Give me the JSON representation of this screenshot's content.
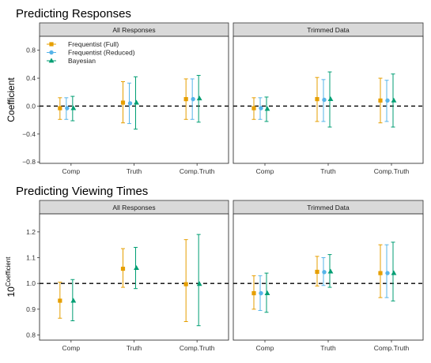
{
  "colors": {
    "Frequentist (Full)": "#E69F00",
    "Frequentist (Reduced)": "#56B4E9",
    "Bayesian": "#009E73"
  },
  "chart_data": [
    {
      "type": "errorbar",
      "title": "Predicting Responses",
      "ylabel": "Coefficient",
      "ylabel_sup": "",
      "categories": [
        "Comp",
        "Truth",
        "Comp.Truth"
      ],
      "yticks": [
        -0.8,
        -0.4,
        0.0,
        0.4,
        0.8
      ],
      "ytick_labels": [
        "−0.8",
        "−0.4",
        "0.0",
        "0.4",
        "0.8"
      ],
      "ylim": [
        -0.82,
        1.0
      ],
      "reference_line": 0,
      "legend": {
        "placement": "top-left",
        "entries": [
          "Frequentist (Full)",
          "Frequentist (Reduced)",
          "Bayesian"
        ]
      },
      "panels": [
        {
          "label": "All Responses",
          "series": [
            {
              "name": "Frequentist (Full)",
              "shape": "square",
              "estimate": [
                -0.03,
                0.05,
                0.1
              ],
              "lower": [
                -0.19,
                -0.24,
                -0.19
              ],
              "upper": [
                0.12,
                0.35,
                0.39
              ]
            },
            {
              "name": "Frequentist (Reduced)",
              "shape": "circle",
              "estimate": [
                -0.03,
                0.04,
                0.1
              ],
              "lower": [
                -0.19,
                -0.25,
                -0.19
              ],
              "upper": [
                0.12,
                0.33,
                0.39
              ]
            },
            {
              "name": "Bayesian",
              "shape": "triangle",
              "estimate": [
                -0.03,
                0.05,
                0.11
              ],
              "lower": [
                -0.21,
                -0.33,
                -0.23
              ],
              "upper": [
                0.14,
                0.42,
                0.44
              ]
            }
          ]
        },
        {
          "label": "Trimmed Data",
          "series": [
            {
              "name": "Frequentist (Full)",
              "shape": "square",
              "estimate": [
                -0.03,
                0.1,
                0.08
              ],
              "lower": [
                -0.19,
                -0.22,
                -0.24
              ],
              "upper": [
                0.12,
                0.41,
                0.4
              ]
            },
            {
              "name": "Frequentist (Reduced)",
              "shape": "circle",
              "estimate": [
                -0.03,
                0.09,
                0.08
              ],
              "lower": [
                -0.19,
                -0.22,
                -0.22
              ],
              "upper": [
                0.12,
                0.38,
                0.37
              ]
            },
            {
              "name": "Bayesian",
              "shape": "triangle",
              "estimate": [
                -0.04,
                0.1,
                0.08
              ],
              "lower": [
                -0.22,
                -0.3,
                -0.3
              ],
              "upper": [
                0.13,
                0.49,
                0.46
              ]
            }
          ]
        }
      ]
    },
    {
      "type": "errorbar",
      "title": "Predicting Viewing Times",
      "ylabel": "10",
      "ylabel_sup": "Coefficient",
      "categories": [
        "Comp",
        "Truth",
        "Comp.Truth"
      ],
      "yticks": [
        0.8,
        0.9,
        1.0,
        1.1,
        1.2
      ],
      "ytick_labels": [
        "0.8",
        "0.9",
        "1.0",
        "1.1",
        "1.2"
      ],
      "ylim": [
        0.78,
        1.27
      ],
      "reference_line": 1.0,
      "panels": [
        {
          "label": "All Responses",
          "series": [
            {
              "name": "Frequentist (Full)",
              "shape": "square",
              "estimate": [
                0.933,
                1.057,
                0.997
              ],
              "lower": [
                0.865,
                0.985,
                0.852
              ],
              "upper": [
                1.005,
                1.135,
                1.17
              ]
            },
            {
              "name": "Bayesian",
              "shape": "triangle",
              "estimate": [
                0.933,
                1.06,
                0.998
              ],
              "lower": [
                0.855,
                0.98,
                0.836
              ],
              "upper": [
                1.015,
                1.14,
                1.19
              ]
            }
          ]
        },
        {
          "label": "Trimmed Data",
          "series": [
            {
              "name": "Frequentist (Full)",
              "shape": "square",
              "estimate": [
                0.962,
                1.045,
                1.04
              ],
              "lower": [
                0.9,
                0.99,
                0.945
              ],
              "upper": [
                1.03,
                1.105,
                1.15
              ]
            },
            {
              "name": "Frequentist (Reduced)",
              "shape": "circle",
              "estimate": [
                0.962,
                1.044,
                1.04
              ],
              "lower": [
                0.895,
                0.992,
                0.945
              ],
              "upper": [
                1.03,
                1.1,
                1.15
              ]
            },
            {
              "name": "Bayesian",
              "shape": "triangle",
              "estimate": [
                0.962,
                1.046,
                1.04
              ],
              "lower": [
                0.888,
                0.985,
                0.932
              ],
              "upper": [
                1.04,
                1.112,
                1.16
              ]
            }
          ]
        }
      ]
    }
  ]
}
